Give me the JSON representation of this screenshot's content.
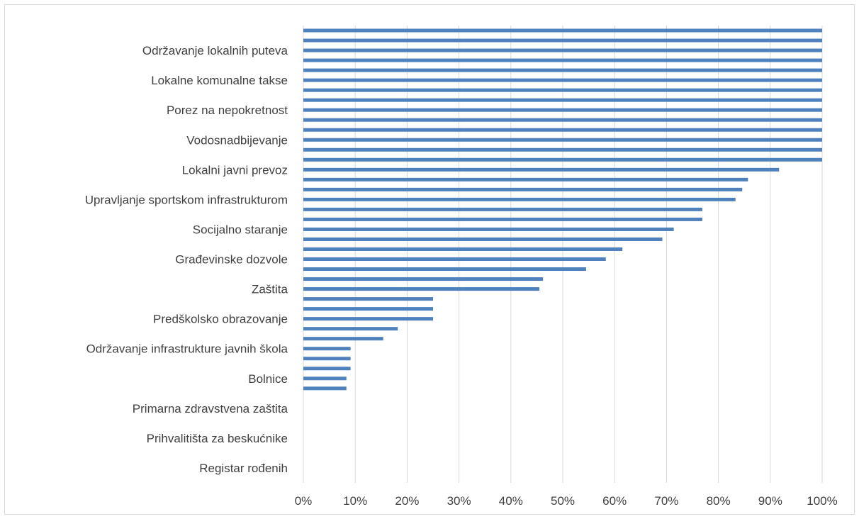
{
  "chart_data": {
    "type": "bar",
    "orientation": "horizontal",
    "x_ticks": [
      "0%",
      "10%",
      "20%",
      "30%",
      "40%",
      "50%",
      "60%",
      "70%",
      "80%",
      "90%",
      "100%"
    ],
    "xlim": [
      0,
      100
    ],
    "grid": true,
    "bar_color": "#4f81bd",
    "grid_color": "#d9d9d9",
    "visible_category_labels": [
      "Održavanje lokalnih puteva",
      "Lokalne komunalne takse",
      "Porez na nepokretnost",
      "Vodosnadbijevanje",
      "Lokalni javni prevoz",
      "Upravljanje sportskom infrastrukturom",
      "Socijalno staranje",
      "Građevinske dozvole",
      "Zaštita",
      "Predškolsko obrazovanje",
      "Održavanje infrastrukture javnih škola",
      "Bolnice",
      "Primarna zdravstvena zaštita",
      "Prihvalitišta za beskućnike",
      "Registar rođenih"
    ],
    "values": [
      100,
      100,
      100,
      100,
      100,
      100,
      100,
      100,
      100,
      100,
      100,
      100,
      100,
      100,
      91.7,
      85.7,
      84.6,
      83.3,
      76.9,
      76.9,
      71.4,
      69.2,
      61.5,
      58.3,
      54.5,
      46.2,
      45.5,
      25,
      25,
      25,
      18.2,
      15.4,
      9.1,
      9.1,
      9.1,
      8.3,
      8.3,
      0,
      0,
      0,
      0,
      0,
      0,
      0,
      0,
      0
    ]
  }
}
